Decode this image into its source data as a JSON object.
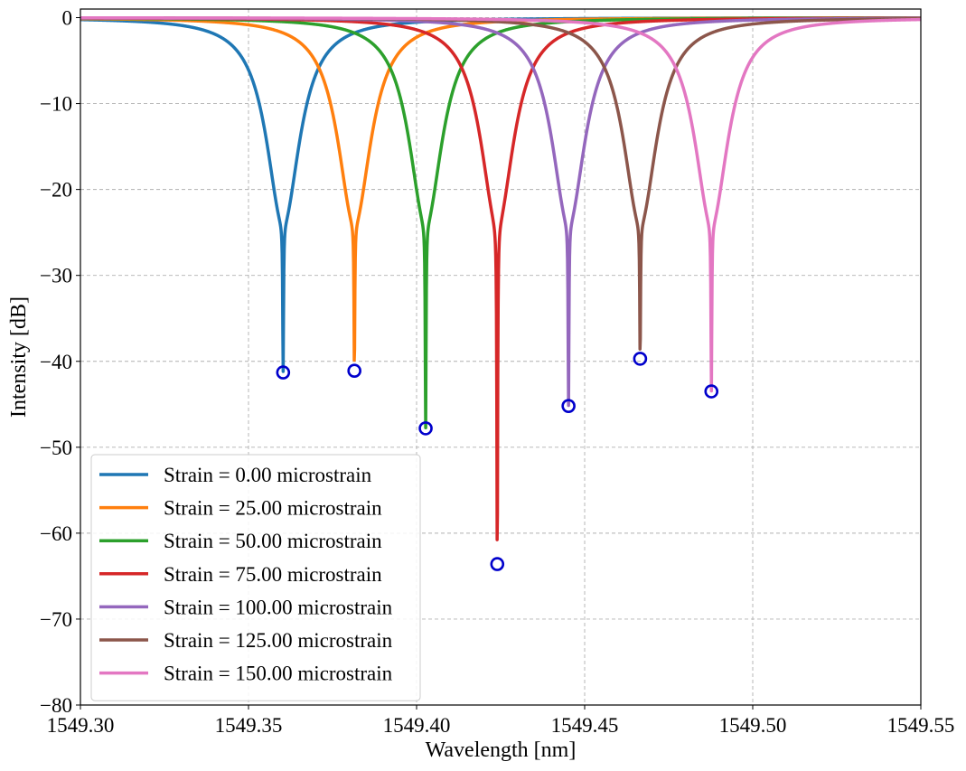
{
  "chart_data": {
    "type": "line",
    "title": "",
    "xlabel": "Wavelength [nm]",
    "ylabel": "Intensity [dB]",
    "xlim": [
      1549.3,
      1549.55
    ],
    "ylim": [
      -80,
      1
    ],
    "xticks": [
      1549.3,
      1549.35,
      1549.4,
      1549.45,
      1549.5,
      1549.55
    ],
    "xtick_labels": [
      "1549.30",
      "1549.35",
      "1549.40",
      "1549.45",
      "1549.50",
      "1549.55"
    ],
    "yticks": [
      0,
      -10,
      -20,
      -30,
      -40,
      -50,
      -60,
      -70,
      -80
    ],
    "ytick_labels": [
      "0",
      "−10",
      "−20",
      "−30",
      "−40",
      "−50",
      "−60",
      "−70",
      "−80"
    ],
    "grid": true,
    "legend_position": "lower-left",
    "series": [
      {
        "name": "Strain = 0.00 microstrain",
        "color": "#1f77b4",
        "center": 1549.3603,
        "min_db": -41.3
      },
      {
        "name": "Strain = 25.00 microstrain",
        "color": "#ff7f0e",
        "center": 1549.3815,
        "min_db": -41.1
      },
      {
        "name": "Strain = 50.00 microstrain",
        "color": "#2ca02c",
        "center": 1549.4027,
        "min_db": -47.8
      },
      {
        "name": "Strain = 75.00 microstrain",
        "color": "#d62728",
        "center": 1549.424,
        "min_db": -63.6
      },
      {
        "name": "Strain = 100.00 microstrain",
        "color": "#9467bd",
        "center": 1549.4452,
        "min_db": -45.2
      },
      {
        "name": "Strain = 125.00 microstrain",
        "color": "#8c564b",
        "center": 1549.4665,
        "min_db": -39.7
      },
      {
        "name": "Strain = 150.00 microstrain",
        "color": "#e377c2",
        "center": 1549.4877,
        "min_db": -43.5
      }
    ],
    "markers": {
      "shape": "circle",
      "color": "#0000cc",
      "description": "minimum of each dip"
    }
  }
}
